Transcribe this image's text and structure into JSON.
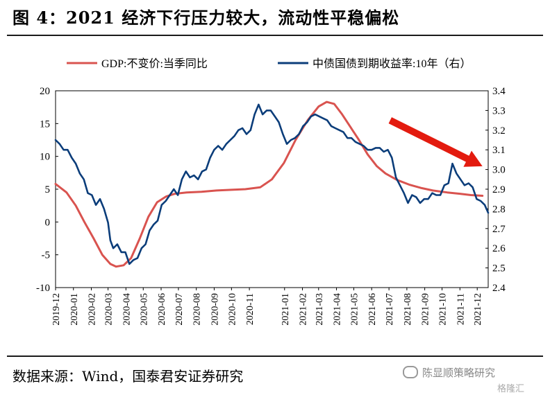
{
  "title": "图 4：2021 经济下行压力较大，流动性平稳偏松",
  "source": "数据来源：Wind，国泰君安证券研究",
  "watermark": "陈显顺策略研究",
  "watermark_logo": "格隆汇",
  "colors": {
    "gdp": "#d9534f",
    "bond": "#0b3d7a",
    "arrow": "#e31b0f"
  },
  "chart_data": {
    "type": "line",
    "x_categories": [
      "2019-12",
      "2020-01",
      "2020-02",
      "2020-03",
      "2020-04",
      "2020-05",
      "2020-06",
      "2020-07",
      "2020-08",
      "2020-09",
      "2020-10",
      "2020-11",
      "2021-01",
      "2021-02",
      "2021-03",
      "2021-04",
      "2021-05",
      "2021-06",
      "2021-07",
      "2021-08",
      "2021-09",
      "2021-10",
      "2021-11",
      "2021-12"
    ],
    "xlim": [
      "2019-12",
      "2021-12-20"
    ],
    "left_axis": {
      "ylim": [
        -10,
        20
      ],
      "ticks": [
        "-10",
        "-5",
        "0",
        "5",
        "10",
        "15",
        "20"
      ]
    },
    "right_axis": {
      "ylim": [
        2.4,
        3.4
      ],
      "ticks": [
        "2.4",
        "2.5",
        "2.6",
        "2.7",
        "2.8",
        "2.9",
        "3.0",
        "3.1",
        "3.2",
        "3.3",
        "3.4"
      ]
    },
    "legend_position": "top",
    "grid": false,
    "series": [
      {
        "name": "GDP:不变价:当季同比",
        "axis": "left",
        "color": "#d9534f",
        "points": [
          [
            "2019-12-01",
            5.8
          ],
          [
            "2019-12-20",
            4.5
          ],
          [
            "2020-01-05",
            2.5
          ],
          [
            "2020-01-20",
            0.0
          ],
          [
            "2020-02-05",
            -2.5
          ],
          [
            "2020-02-20",
            -5.0
          ],
          [
            "2020-03-05",
            -6.4
          ],
          [
            "2020-03-15",
            -6.8
          ],
          [
            "2020-03-28",
            -6.6
          ],
          [
            "2020-04-10",
            -5.5
          ],
          [
            "2020-04-25",
            -2.5
          ],
          [
            "2020-05-10",
            0.8
          ],
          [
            "2020-05-25",
            3.0
          ],
          [
            "2020-06-10",
            3.9
          ],
          [
            "2020-06-25",
            4.3
          ],
          [
            "2020-07-15",
            4.5
          ],
          [
            "2020-08-10",
            4.6
          ],
          [
            "2020-09-05",
            4.8
          ],
          [
            "2020-10-01",
            4.9
          ],
          [
            "2020-10-25",
            5.0
          ],
          [
            "2020-11-20",
            5.3
          ],
          [
            "2020-12-10",
            6.5
          ],
          [
            "2020-12-31",
            9.0
          ],
          [
            "2021-01-20",
            12.5
          ],
          [
            "2021-02-10",
            15.5
          ],
          [
            "2021-03-01",
            17.6
          ],
          [
            "2021-03-15",
            18.3
          ],
          [
            "2021-03-28",
            18.0
          ],
          [
            "2021-04-10",
            16.5
          ],
          [
            "2021-04-25",
            14.5
          ],
          [
            "2021-05-10",
            12.5
          ],
          [
            "2021-05-25",
            10.3
          ],
          [
            "2021-06-10",
            8.5
          ],
          [
            "2021-06-25",
            7.4
          ],
          [
            "2021-07-15",
            6.4
          ],
          [
            "2021-08-05",
            5.7
          ],
          [
            "2021-08-25",
            5.2
          ],
          [
            "2021-09-15",
            4.8
          ],
          [
            "2021-10-10",
            4.5
          ],
          [
            "2021-11-01",
            4.3
          ],
          [
            "2021-11-20",
            4.1
          ],
          [
            "2021-12-10",
            4.0
          ]
        ]
      },
      {
        "name": "中债国债到期收益率:10年（右）",
        "axis": "right",
        "color": "#0b3d7a",
        "points": [
          [
            "2019-12-01",
            3.15
          ],
          [
            "2019-12-08",
            3.13
          ],
          [
            "2019-12-15",
            3.1
          ],
          [
            "2019-12-22",
            3.1
          ],
          [
            "2019-12-29",
            3.06
          ],
          [
            "2020-01-05",
            3.03
          ],
          [
            "2020-01-12",
            2.98
          ],
          [
            "2020-01-19",
            2.95
          ],
          [
            "2020-01-26",
            2.88
          ],
          [
            "2020-02-02",
            2.87
          ],
          [
            "2020-02-09",
            2.82
          ],
          [
            "2020-02-16",
            2.85
          ],
          [
            "2020-02-23",
            2.8
          ],
          [
            "2020-03-01",
            2.73
          ],
          [
            "2020-03-05",
            2.64
          ],
          [
            "2020-03-10",
            2.6
          ],
          [
            "2020-03-17",
            2.62
          ],
          [
            "2020-03-24",
            2.58
          ],
          [
            "2020-03-31",
            2.58
          ],
          [
            "2020-04-07",
            2.52
          ],
          [
            "2020-04-14",
            2.54
          ],
          [
            "2020-04-21",
            2.55
          ],
          [
            "2020-04-28",
            2.6
          ],
          [
            "2020-05-05",
            2.62
          ],
          [
            "2020-05-12",
            2.69
          ],
          [
            "2020-05-19",
            2.72
          ],
          [
            "2020-05-26",
            2.74
          ],
          [
            "2020-06-02",
            2.82
          ],
          [
            "2020-06-09",
            2.84
          ],
          [
            "2020-06-16",
            2.87
          ],
          [
            "2020-06-23",
            2.9
          ],
          [
            "2020-06-30",
            2.87
          ],
          [
            "2020-07-07",
            2.95
          ],
          [
            "2020-07-14",
            2.99
          ],
          [
            "2020-07-21",
            2.96
          ],
          [
            "2020-07-28",
            2.97
          ],
          [
            "2020-08-04",
            2.95
          ],
          [
            "2020-08-11",
            2.99
          ],
          [
            "2020-08-18",
            3.0
          ],
          [
            "2020-08-25",
            3.06
          ],
          [
            "2020-09-01",
            3.1
          ],
          [
            "2020-09-08",
            3.12
          ],
          [
            "2020-09-15",
            3.1
          ],
          [
            "2020-09-22",
            3.13
          ],
          [
            "2020-09-29",
            3.15
          ],
          [
            "2020-10-06",
            3.17
          ],
          [
            "2020-10-13",
            3.2
          ],
          [
            "2020-10-20",
            3.21
          ],
          [
            "2020-10-27",
            3.18
          ],
          [
            "2020-11-03",
            3.2
          ],
          [
            "2020-11-10",
            3.28
          ],
          [
            "2020-11-17",
            3.33
          ],
          [
            "2020-11-24",
            3.28
          ],
          [
            "2020-12-01",
            3.3
          ],
          [
            "2020-12-08",
            3.3
          ],
          [
            "2020-12-15",
            3.27
          ],
          [
            "2020-12-22",
            3.24
          ],
          [
            "2020-12-29",
            3.18
          ],
          [
            "2021-01-05",
            3.13
          ],
          [
            "2021-01-12",
            3.15
          ],
          [
            "2021-01-19",
            3.16
          ],
          [
            "2021-01-26",
            3.18
          ],
          [
            "2021-02-02",
            3.22
          ],
          [
            "2021-02-09",
            3.24
          ],
          [
            "2021-02-16",
            3.27
          ],
          [
            "2021-02-23",
            3.28
          ],
          [
            "2021-03-02",
            3.27
          ],
          [
            "2021-03-09",
            3.26
          ],
          [
            "2021-03-16",
            3.25
          ],
          [
            "2021-03-23",
            3.22
          ],
          [
            "2021-03-30",
            3.21
          ],
          [
            "2021-04-06",
            3.2
          ],
          [
            "2021-04-13",
            3.19
          ],
          [
            "2021-04-20",
            3.16
          ],
          [
            "2021-04-27",
            3.16
          ],
          [
            "2021-05-04",
            3.14
          ],
          [
            "2021-05-11",
            3.13
          ],
          [
            "2021-05-18",
            3.12
          ],
          [
            "2021-05-25",
            3.1
          ],
          [
            "2021-06-01",
            3.1
          ],
          [
            "2021-06-08",
            3.11
          ],
          [
            "2021-06-15",
            3.11
          ],
          [
            "2021-06-22",
            3.09
          ],
          [
            "2021-06-29",
            3.1
          ],
          [
            "2021-07-06",
            3.06
          ],
          [
            "2021-07-13",
            2.96
          ],
          [
            "2021-07-20",
            2.92
          ],
          [
            "2021-07-27",
            2.88
          ],
          [
            "2021-08-03",
            2.83
          ],
          [
            "2021-08-10",
            2.87
          ],
          [
            "2021-08-17",
            2.86
          ],
          [
            "2021-08-24",
            2.83
          ],
          [
            "2021-08-31",
            2.85
          ],
          [
            "2021-09-07",
            2.85
          ],
          [
            "2021-09-14",
            2.88
          ],
          [
            "2021-09-21",
            2.87
          ],
          [
            "2021-09-28",
            2.87
          ],
          [
            "2021-10-05",
            2.92
          ],
          [
            "2021-10-12",
            2.93
          ],
          [
            "2021-10-19",
            3.03
          ],
          [
            "2021-10-26",
            2.98
          ],
          [
            "2021-11-02",
            2.95
          ],
          [
            "2021-11-09",
            2.92
          ],
          [
            "2021-11-16",
            2.93
          ],
          [
            "2021-11-23",
            2.91
          ],
          [
            "2021-11-30",
            2.85
          ],
          [
            "2021-12-07",
            2.84
          ],
          [
            "2021-12-14",
            2.82
          ],
          [
            "2021-12-20",
            2.78
          ]
        ]
      }
    ],
    "annotations": [
      {
        "type": "arrow",
        "color": "#e31b0f",
        "from": [
          "2021-07-03",
          15.5
        ],
        "to": [
          "2021-12-10",
          8.5
        ],
        "axis": "left"
      }
    ]
  }
}
